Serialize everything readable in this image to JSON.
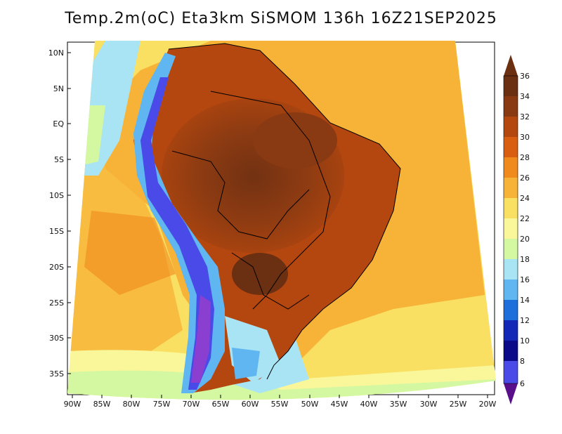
{
  "title": "Temp.2m(oC) Eta3km SiSMOM 136h 16Z21SEP2025",
  "lat_ticks": [
    "10N",
    "5N",
    "EQ",
    "5S",
    "10S",
    "15S",
    "20S",
    "25S",
    "30S",
    "35S"
  ],
  "lon_ticks": [
    "90W",
    "85W",
    "80W",
    "75W",
    "70W",
    "65W",
    "60W",
    "55W",
    "50W",
    "45W",
    "40W",
    "35W",
    "30W",
    "25W",
    "20W"
  ],
  "colorbar": {
    "labels": [
      "36",
      "34",
      "32",
      "30",
      "28",
      "26",
      "24",
      "22",
      "20",
      "18",
      "16",
      "14",
      "12",
      "10",
      "8",
      "6"
    ],
    "colors": [
      "#6b2f12",
      "#8a3a12",
      "#b4470f",
      "#d95e12",
      "#f08a1c",
      "#f6b338",
      "#f9df62",
      "#f9f79a",
      "#d4f7a2",
      "#a9e4f5",
      "#5fb6f0",
      "#1d6fdc",
      "#1428b8",
      "#0b0b8a",
      "#4a4ae8",
      "#8a3fd0",
      "#5a0f8a"
    ]
  }
}
